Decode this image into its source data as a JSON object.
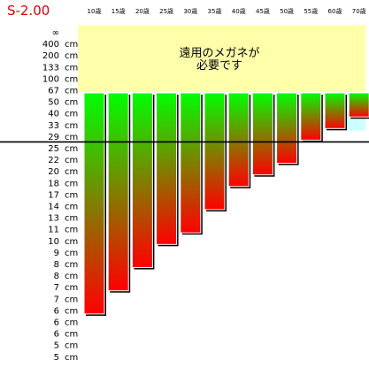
{
  "chart_data": {
    "type": "bar",
    "title": "S-2.00",
    "categories": [
      "10歳",
      "15歳",
      "20歳",
      "25歳",
      "30歳",
      "35歳",
      "40歳",
      "45歳",
      "50歳",
      "55歳",
      "60歳",
      "70歳"
    ],
    "series": [
      {
        "values": [
          [
            "67cm",
            "6cm"
          ],
          [
            "67cm",
            "7cm"
          ],
          [
            "67cm",
            "8cm"
          ],
          [
            "67cm",
            "10cm"
          ],
          [
            "67cm",
            "11cm"
          ],
          [
            "67cm",
            "14cm"
          ],
          [
            "67cm",
            "18cm"
          ],
          [
            "67cm",
            "20cm"
          ],
          [
            "67cm",
            "22cm"
          ],
          [
            "67cm",
            "29cm"
          ],
          [
            "67cm",
            "33cm"
          ],
          [
            "67cm",
            "40cm"
          ]
        ]
      }
    ],
    "y_ticks": [
      "∞",
      "400 cm",
      "200 cm",
      "133 cm",
      "100 cm",
      "67 cm",
      "50 cm",
      "40 cm",
      "33 cm",
      "29 cm",
      "25 cm",
      "22 cm",
      "20 cm",
      "18 cm",
      "17 cm",
      "14 cm",
      "13 cm",
      "11 cm",
      "10 cm",
      "9 cm",
      "8 cm",
      "8 cm",
      "7 cm",
      "7 cm",
      "6 cm",
      "6 cm",
      "6 cm",
      "5 cm",
      "5 cm"
    ],
    "zones": [
      {
        "label": "遠用のメガネが\n必要です",
        "from": "∞",
        "to": "67cm",
        "color": "#ffffaa"
      },
      {
        "from": "29cm",
        "to": "33cm",
        "color": "#ccffff"
      }
    ],
    "reference_line": "29cm",
    "colors": {
      "bar_top": "#00ff00",
      "bar_bottom": "#ff0000",
      "zone_far": "#ffffaa",
      "zone_light": "#ccffff"
    }
  }
}
